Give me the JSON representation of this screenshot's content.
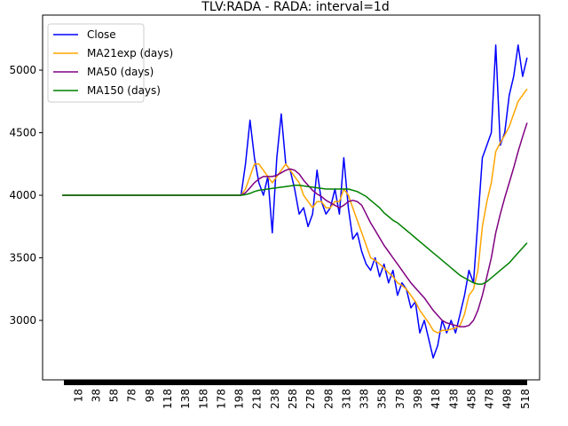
{
  "chart_data": {
    "type": "line",
    "title": "TLV:RADA - RADA: interval=1d",
    "x": [
      0,
      100,
      200,
      205,
      210,
      215,
      220,
      225,
      230,
      235,
      240,
      245,
      250,
      255,
      260,
      265,
      270,
      275,
      280,
      285,
      290,
      295,
      300,
      305,
      310,
      315,
      320,
      325,
      330,
      335,
      340,
      345,
      350,
      355,
      360,
      365,
      370,
      375,
      380,
      385,
      390,
      395,
      400,
      405,
      410,
      415,
      420,
      425,
      430,
      435,
      440,
      445,
      450,
      455,
      460,
      465,
      470,
      475,
      480,
      485,
      490,
      495,
      500,
      505,
      510,
      515,
      520
    ],
    "series": [
      {
        "name": "Close",
        "color": "#0000ff",
        "values": [
          4000,
          4000,
          4000,
          4250,
          4600,
          4300,
          4100,
          4000,
          4150,
          3700,
          4300,
          4650,
          4250,
          4200,
          4050,
          3850,
          3900,
          3750,
          3850,
          4200,
          3950,
          3850,
          3900,
          4050,
          3850,
          4300,
          3900,
          3650,
          3700,
          3550,
          3450,
          3400,
          3500,
          3350,
          3450,
          3300,
          3400,
          3200,
          3300,
          3250,
          3100,
          3150,
          2900,
          3000,
          2850,
          2700,
          2800,
          3000,
          2900,
          3000,
          2900,
          3050,
          3200,
          3400,
          3300,
          3800,
          4300,
          4400,
          4500,
          5200,
          4400,
          4500,
          4800,
          4950,
          5200,
          4950,
          5100
        ]
      },
      {
        "name": "MA21exp (days)",
        "color": "#ffa500",
        "values": [
          4000,
          4000,
          4000,
          4050,
          4150,
          4250,
          4250,
          4200,
          4150,
          4100,
          4150,
          4200,
          4250,
          4200,
          4150,
          4100,
          4000,
          3950,
          3900,
          3950,
          3950,
          3900,
          3900,
          3950,
          3950,
          4050,
          4000,
          3900,
          3800,
          3700,
          3600,
          3500,
          3480,
          3450,
          3420,
          3380,
          3350,
          3300,
          3280,
          3250,
          3200,
          3150,
          3080,
          3030,
          2980,
          2920,
          2900,
          2920,
          2920,
          2930,
          2940,
          2960,
          3050,
          3200,
          3250,
          3400,
          3750,
          3950,
          4100,
          4350,
          4420,
          4480,
          4550,
          4650,
          4750,
          4800,
          4850
        ]
      },
      {
        "name": "MA50 (days)",
        "color": "#800080",
        "values": [
          4000,
          4000,
          4000,
          4020,
          4060,
          4100,
          4130,
          4150,
          4150,
          4150,
          4160,
          4180,
          4200,
          4210,
          4200,
          4170,
          4120,
          4080,
          4040,
          4010,
          3990,
          3960,
          3940,
          3920,
          3900,
          3920,
          3950,
          3960,
          3950,
          3920,
          3850,
          3780,
          3720,
          3660,
          3600,
          3550,
          3500,
          3450,
          3400,
          3350,
          3300,
          3260,
          3220,
          3180,
          3130,
          3080,
          3040,
          3000,
          2980,
          2970,
          2960,
          2950,
          2950,
          2960,
          3000,
          3080,
          3200,
          3350,
          3500,
          3700,
          3850,
          3980,
          4100,
          4220,
          4350,
          4470,
          4580
        ]
      },
      {
        "name": "MA150 (days)",
        "color": "#008000",
        "values": [
          4000,
          4000,
          4000,
          4005,
          4015,
          4030,
          4040,
          4045,
          4050,
          4055,
          4060,
          4065,
          4070,
          4075,
          4080,
          4080,
          4075,
          4070,
          4065,
          4060,
          4055,
          4050,
          4050,
          4050,
          4050,
          4050,
          4050,
          4040,
          4030,
          4010,
          3990,
          3960,
          3930,
          3900,
          3860,
          3830,
          3800,
          3780,
          3750,
          3720,
          3690,
          3660,
          3630,
          3600,
          3570,
          3540,
          3510,
          3480,
          3450,
          3420,
          3390,
          3360,
          3340,
          3320,
          3300,
          3290,
          3290,
          3310,
          3340,
          3370,
          3400,
          3430,
          3460,
          3500,
          3540,
          3580,
          3620
        ]
      }
    ],
    "xlim": [
      -22,
      534
    ],
    "ylim": [
      2525,
      5440
    ],
    "xticks": [
      18,
      38,
      58,
      78,
      98,
      118,
      138,
      158,
      178,
      198,
      218,
      238,
      258,
      278,
      298,
      318,
      338,
      358,
      378,
      398,
      418,
      438,
      458,
      478,
      498,
      518
    ],
    "yticks": [
      3000,
      3500,
      4000,
      4500,
      5000
    ],
    "legend": "upper left"
  }
}
